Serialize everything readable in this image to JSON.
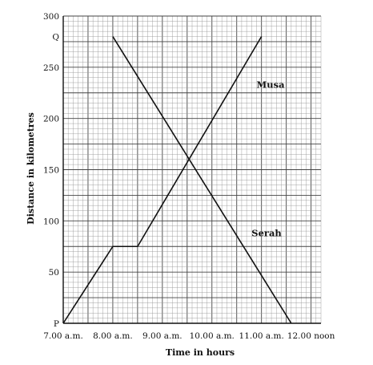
{
  "chart_data": {
    "type": "line",
    "xlabel": "Time in hours",
    "ylabel": "Distance in kilometres",
    "x_ticks": [
      {
        "value": 7,
        "label": "7.00 a.m."
      },
      {
        "value": 8,
        "label": "8.00 a.m."
      },
      {
        "value": 9,
        "label": "9.00 a.m."
      },
      {
        "value": 10,
        "label": "10.00 a.m."
      },
      {
        "value": 11,
        "label": "11.00 a.m."
      },
      {
        "value": 12,
        "label": "12.00 noon"
      }
    ],
    "y_ticks": [
      {
        "value": 0,
        "label": "P"
      },
      {
        "value": 50,
        "label": "50"
      },
      {
        "value": 100,
        "label": "100"
      },
      {
        "value": 150,
        "label": "150"
      },
      {
        "value": 200,
        "label": "200"
      },
      {
        "value": 250,
        "label": "250"
      },
      {
        "value": 280,
        "label": "Q"
      },
      {
        "value": 300,
        "label": "300"
      }
    ],
    "xlim": [
      7,
      12.2
    ],
    "ylim": [
      0,
      300
    ],
    "grid": true,
    "series": [
      {
        "name": "Musa",
        "x": [
          7.0,
          8.0,
          8.5,
          11.0
        ],
        "y": [
          0,
          75,
          75,
          280
        ],
        "color": "#111111"
      },
      {
        "name": "Serah",
        "x": [
          8.0,
          11.6
        ],
        "y": [
          280,
          0
        ],
        "color": "#111111"
      }
    ]
  }
}
